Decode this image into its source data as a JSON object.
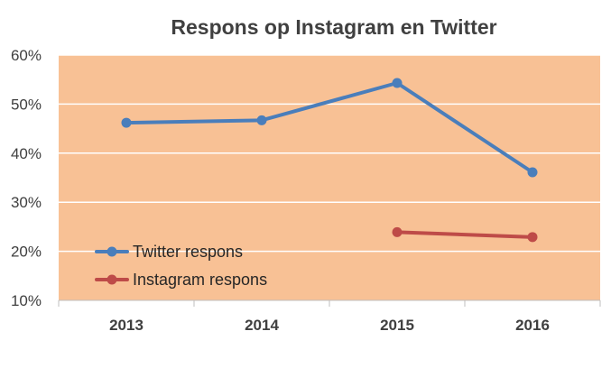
{
  "chart_data": {
    "type": "line",
    "title": "Respons op Instagram en Twitter",
    "xlabel": "",
    "ylabel": "",
    "categories": [
      "2013",
      "2014",
      "2015",
      "2016"
    ],
    "ylim": [
      0.1,
      0.6
    ],
    "y_ticks": [
      0.1,
      0.2,
      0.3,
      0.4,
      0.5,
      0.6
    ],
    "y_tick_labels": [
      "10%",
      "20%",
      "30%",
      "40%",
      "50%",
      "60%"
    ],
    "grid": true,
    "legend_position": "lower-left",
    "plot_background": "#F8C195",
    "gridline_color": "#ffffff",
    "series": [
      {
        "name": "Twitter respons",
        "color": "#4A7EBB",
        "values": [
          0.462,
          0.467,
          0.543,
          0.361
        ]
      },
      {
        "name": "Instagram respons",
        "color": "#BE4B48",
        "values": [
          null,
          null,
          0.239,
          0.229
        ]
      }
    ]
  }
}
